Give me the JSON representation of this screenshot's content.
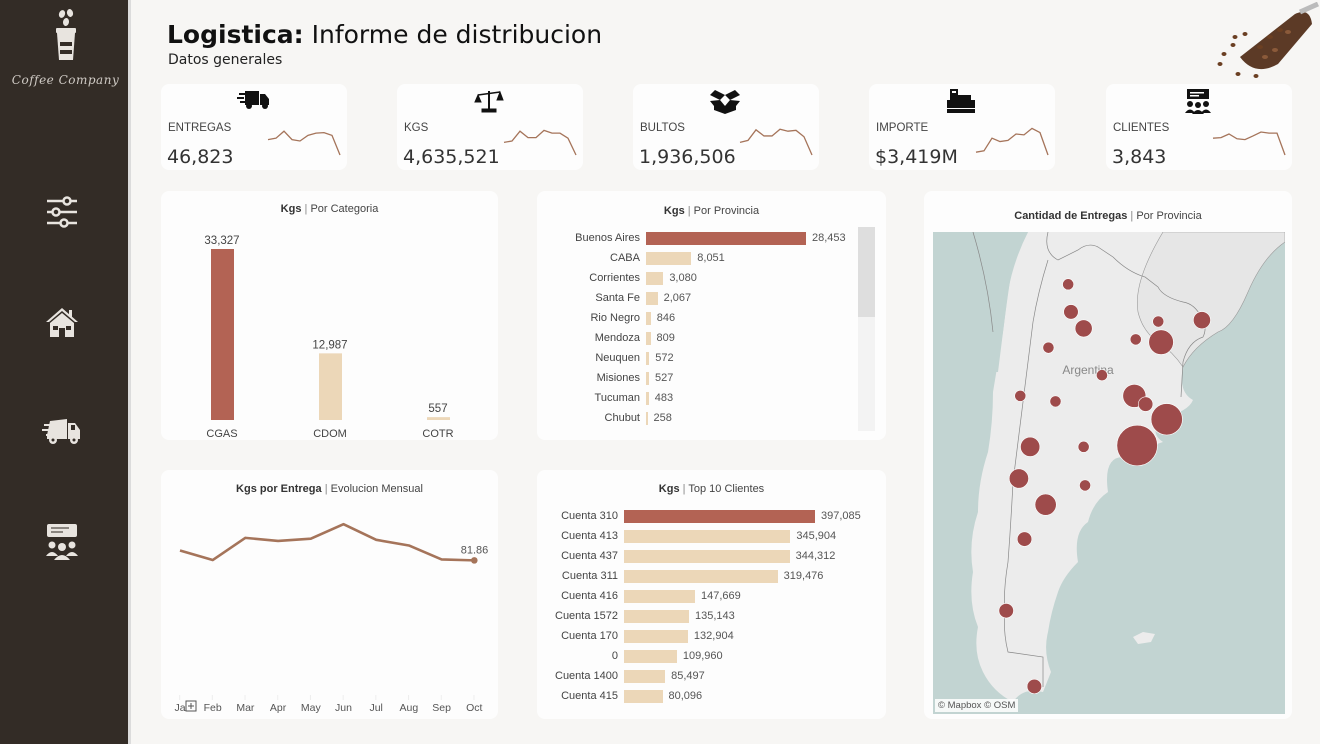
{
  "brand": {
    "name": "Coffee Company"
  },
  "header": {
    "title_bold": "Logistica:",
    "title_rest": " Informe de distribucion",
    "subtitle": "Datos generales"
  },
  "sidebar": {
    "items": [
      {
        "name": "filters",
        "icon": "sliders-icon"
      },
      {
        "name": "home",
        "icon": "house-icon"
      },
      {
        "name": "delivery",
        "icon": "truck-icon"
      },
      {
        "name": "clients",
        "icon": "clients-icon"
      }
    ]
  },
  "colors": {
    "sidebar_bg": "#332c26",
    "highlight_bar": "#b36354",
    "regular_bar": "#ecd7b8",
    "line": "#a5745a",
    "map_bubble": "#9e4b4b",
    "map_water": "#c2d4d2",
    "map_land": "#ececec"
  },
  "kpis": [
    {
      "label": "ENTREGAS",
      "value": "46,823",
      "icon": "truck-icon",
      "spark": [
        0.55,
        0.6,
        0.85,
        0.55,
        0.5,
        0.7,
        0.78,
        0.8,
        0.7,
        0.0
      ]
    },
    {
      "label": "KGS",
      "value": "4,635,521",
      "icon": "scale-icon",
      "spark": [
        0.45,
        0.5,
        0.85,
        0.62,
        0.62,
        0.88,
        0.78,
        0.78,
        0.6,
        0.0
      ]
    },
    {
      "label": "BULTOS",
      "value": "1,936,506",
      "icon": "box-icon",
      "spark": [
        0.45,
        0.52,
        0.9,
        0.68,
        0.68,
        0.92,
        0.85,
        0.88,
        0.65,
        0.0
      ]
    },
    {
      "label": "IMPORTE",
      "value": "$3,419M",
      "icon": "cash-register-icon",
      "spark": [
        0.1,
        0.15,
        0.6,
        0.48,
        0.52,
        0.75,
        0.72,
        0.95,
        0.8,
        0.0
      ]
    },
    {
      "label": "CLIENTES",
      "value": "3,843",
      "icon": "presentation-icon",
      "spark": [
        0.6,
        0.62,
        0.75,
        0.58,
        0.55,
        0.68,
        0.82,
        0.78,
        0.78,
        0.0
      ]
    }
  ],
  "chart_data": [
    {
      "id": "categoria",
      "type": "bar",
      "title_bold": "Kgs",
      "title_rest": "Por Categoria",
      "categories": [
        "CGAS",
        "CDOM",
        "COTR"
      ],
      "values": [
        33327,
        12987,
        557
      ],
      "labels": [
        "33,327",
        "12,987",
        "557"
      ],
      "highlight": [
        true,
        false,
        false
      ]
    },
    {
      "id": "provincia",
      "type": "bar",
      "orientation": "horizontal",
      "title_bold": "Kgs",
      "title_rest": "Por Provincia",
      "categories": [
        "Buenos Aires",
        "CABA",
        "Corrientes",
        "Santa Fe",
        "Rio Negro",
        "Mendoza",
        "Neuquen",
        "Misiones",
        "Tucuman",
        "Chubut"
      ],
      "values": [
        28453,
        8051,
        3080,
        2067,
        846,
        809,
        572,
        527,
        483,
        258
      ],
      "labels": [
        "28,453",
        "8,051",
        "3,080",
        "2,067",
        "846",
        "809",
        "572",
        "527",
        "483",
        "258"
      ],
      "highlight": [
        true,
        false,
        false,
        false,
        false,
        false,
        false,
        false,
        false,
        false
      ]
    },
    {
      "id": "mensual",
      "type": "line",
      "title_bold": "Kgs por Entrega",
      "title_rest": "Evolucion Mensual",
      "categories": [
        "Ja",
        "Feb",
        "Mar",
        "Apr",
        "May",
        "Jun",
        "Jul",
        "Aug",
        "Sep",
        "Oct"
      ],
      "values": [
        86.4,
        82.0,
        92.2,
        90.8,
        91.8,
        98.5,
        91.3,
        88.7,
        82.3,
        81.86
      ],
      "end_label": "81.86",
      "ylim": [
        20,
        105
      ]
    },
    {
      "id": "clientes",
      "type": "bar",
      "orientation": "horizontal",
      "title_bold": "Kgs",
      "title_rest": "Top 10 Clientes",
      "categories": [
        "Cuenta 310",
        "Cuenta 413",
        "Cuenta 437",
        "Cuenta 311",
        "Cuenta 416",
        "Cuenta 1572",
        "Cuenta 170",
        "0",
        "Cuenta 1400",
        "Cuenta 415"
      ],
      "values": [
        397085,
        345904,
        344312,
        319476,
        147669,
        135143,
        132904,
        109960,
        85497,
        80096
      ],
      "labels": [
        "397,085",
        "345,904",
        "344,312",
        "319,476",
        "147,669",
        "135,143",
        "132,904",
        "109,960",
        "85,497",
        "80,096"
      ],
      "highlight": [
        true,
        false,
        false,
        false,
        false,
        false,
        false,
        false,
        false,
        false
      ]
    }
  ],
  "map": {
    "title_bold": "Cantidad de Entregas",
    "title_rest": "Por Provincia",
    "country_label": "Argentina",
    "credit": "© Mapbox  © OSM",
    "bubbles": [
      {
        "lon": -65.4,
        "lat": -24.8,
        "size": 1
      },
      {
        "lon": -65.2,
        "lat": -26.8,
        "size": 2
      },
      {
        "lon": -59.0,
        "lat": -27.5,
        "size": 1
      },
      {
        "lon": -60.6,
        "lat": -28.8,
        "size": 1
      },
      {
        "lon": -55.9,
        "lat": -27.4,
        "size": 3
      },
      {
        "lon": -66.8,
        "lat": -29.4,
        "size": 1
      },
      {
        "lon": -64.3,
        "lat": -28.0,
        "size": 3
      },
      {
        "lon": -63.0,
        "lat": -31.4,
        "size": 1
      },
      {
        "lon": -58.8,
        "lat": -29.0,
        "size": 7
      },
      {
        "lon": -68.8,
        "lat": -32.9,
        "size": 1
      },
      {
        "lon": -66.3,
        "lat": -33.3,
        "size": 1
      },
      {
        "lon": -60.7,
        "lat": -32.9,
        "size": 6
      },
      {
        "lon": -59.9,
        "lat": -33.5,
        "size": 2
      },
      {
        "lon": -64.3,
        "lat": -36.6,
        "size": 1
      },
      {
        "lon": -68.1,
        "lat": -36.6,
        "size": 4
      },
      {
        "lon": -58.4,
        "lat": -34.6,
        "size": 12
      },
      {
        "lon": -60.5,
        "lat": -36.5,
        "size": 21
      },
      {
        "lon": -64.2,
        "lat": -39.4,
        "size": 1
      },
      {
        "lon": -68.9,
        "lat": -38.9,
        "size": 4
      },
      {
        "lon": -67.0,
        "lat": -40.8,
        "size": 5
      },
      {
        "lon": -68.5,
        "lat": -43.3,
        "size": 2
      },
      {
        "lon": -69.8,
        "lat": -48.5,
        "size": 2
      },
      {
        "lon": -67.8,
        "lat": -54.0,
        "size": 2
      }
    ]
  }
}
